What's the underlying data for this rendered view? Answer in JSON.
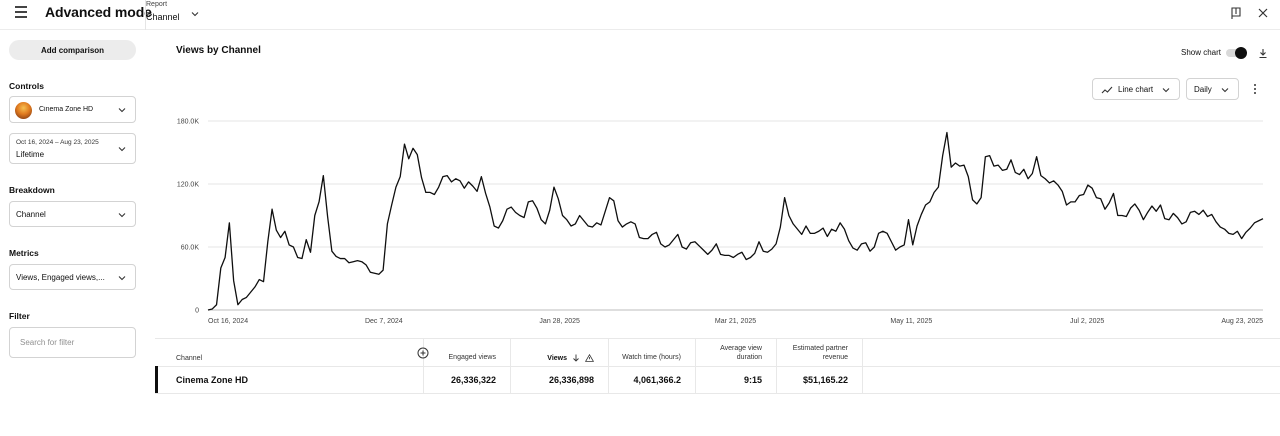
{
  "header": {
    "app_title": "Advanced mode",
    "report_label": "Report",
    "report_value": "Channel"
  },
  "sidebar": {
    "add_comparison": "Add comparison",
    "controls_label": "Controls",
    "channel_select": "Cinema Zone HD",
    "date_range_dates": "Oct 16, 2024 – Aug 23, 2025",
    "date_range_value": "Lifetime",
    "breakdown_label": "Breakdown",
    "breakdown_value": "Channel",
    "metrics_label": "Metrics",
    "metrics_value": "Views, Engaged views,...",
    "filter_label": "Filter",
    "filter_placeholder": "Search for filter"
  },
  "main": {
    "chart_title": "Views by Channel",
    "show_chart_label": "Show chart",
    "show_chart_on": true,
    "chart_type_button": "Line chart",
    "interval_button": "Daily"
  },
  "chart_data": {
    "type": "line",
    "y_ticks": [
      "0",
      "60.0K",
      "120.0K",
      "180.0K"
    ],
    "x_ticks": [
      "Oct 16, 2024",
      "Dec 7, 2024",
      "Jan 28, 2025",
      "Mar 21, 2025",
      "May 11, 2025",
      "Jul 2, 2025",
      "Aug 23, 2025"
    ],
    "ylim": [
      0,
      180000
    ],
    "grid": true,
    "color": "#0f0f0f",
    "series": [
      {
        "values": [
          0,
          1000,
          5000,
          40000,
          50000,
          83000,
          28000,
          5000,
          10000,
          12000,
          17000,
          22000,
          29000,
          27000,
          65000,
          96000,
          76000,
          69000,
          75000,
          62000,
          60000,
          50000,
          49000,
          67000,
          55000,
          90000,
          103000,
          128000,
          89000,
          56000,
          51000,
          49000,
          49000,
          45000,
          46000,
          47000,
          46000,
          43000,
          36000,
          35000,
          34000,
          38000,
          82000,
          100000,
          117000,
          127000,
          158000,
          144000,
          154000,
          148000,
          126000,
          112000,
          112000,
          110000,
          117000,
          127000,
          128000,
          122000,
          125000,
          123000,
          116000,
          122000,
          118000,
          113000,
          127000,
          111000,
          98000,
          80000,
          78000,
          85000,
          96000,
          98000,
          93000,
          90000,
          88000,
          103000,
          104000,
          97000,
          86000,
          82000,
          95000,
          117000,
          106000,
          90000,
          86000,
          80000,
          82000,
          90000,
          85000,
          80000,
          79000,
          83000,
          81000,
          94000,
          107000,
          104000,
          85000,
          79000,
          82000,
          84000,
          82000,
          69000,
          68000,
          68000,
          72000,
          74000,
          63000,
          60000,
          62000,
          67000,
          72000,
          60000,
          58000,
          64000,
          65000,
          61000,
          57000,
          53000,
          57000,
          63000,
          53000,
          52000,
          52000,
          50000,
          53000,
          55000,
          48000,
          50000,
          54000,
          65000,
          56000,
          55000,
          58000,
          63000,
          79000,
          107000,
          90000,
          82000,
          77000,
          72000,
          80000,
          73000,
          73000,
          75000,
          78000,
          70000,
          77000,
          75000,
          83000,
          77000,
          66000,
          59000,
          57000,
          63000,
          64000,
          56000,
          60000,
          73000,
          75000,
          73000,
          65000,
          57000,
          60000,
          62000,
          86000,
          62000,
          80000,
          91000,
          100000,
          103000,
          112000,
          117000,
          147000,
          169000,
          136000,
          140000,
          137000,
          138000,
          127000,
          105000,
          101000,
          107000,
          146000,
          147000,
          137000,
          138000,
          133000,
          134000,
          143000,
          131000,
          129000,
          134000,
          125000,
          130000,
          146000,
          128000,
          125000,
          121000,
          123000,
          119000,
          113000,
          100000,
          103000,
          103000,
          109000,
          110000,
          119000,
          116000,
          107000,
          106000,
          96000,
          102000,
          111000,
          90000,
          90000,
          89000,
          97000,
          101000,
          95000,
          86000,
          93000,
          99000,
          94000,
          100000,
          87000,
          86000,
          92000,
          88000,
          82000,
          84000,
          93000,
          94000,
          91000,
          95000,
          89000,
          91000,
          84000,
          79000,
          77000,
          73000,
          72000,
          75000,
          68000,
          74000,
          78000,
          83000,
          85000,
          87000
        ]
      }
    ]
  },
  "table": {
    "headers": [
      "Channel",
      "Engaged views",
      "Views",
      "Watch time (hours)",
      "Average view duration",
      "Estimated partner revenue"
    ],
    "rows": [
      [
        "Cinema Zone HD",
        "26,336,322",
        "26,336,898",
        "4,061,366.2",
        "9:15",
        "$51,165.22"
      ]
    ]
  }
}
